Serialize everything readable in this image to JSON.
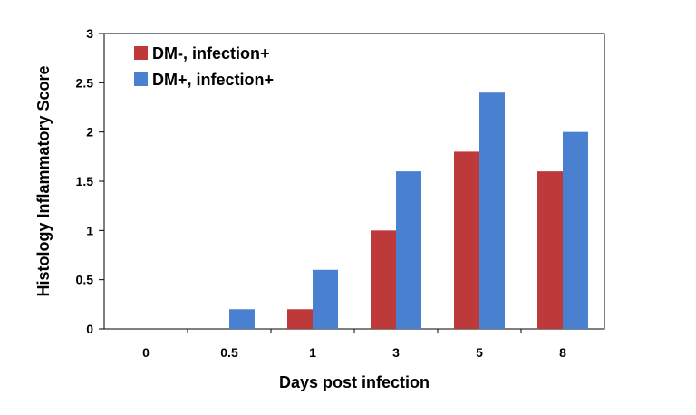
{
  "chart_data": {
    "type": "bar",
    "title": "",
    "xlabel": "Days post infection",
    "ylabel": "Histology Inflammatory Score",
    "categories": [
      "0",
      "0.5",
      "1",
      "3",
      "5",
      "8"
    ],
    "ylim": [
      0,
      3
    ],
    "yticks": [
      "0",
      "0.5",
      "1",
      "1.5",
      "2",
      "2.5",
      "3"
    ],
    "grid": false,
    "legend_position": "top-left",
    "series": [
      {
        "name": "DM-, infection+",
        "color": "#be3a3a",
        "values": [
          0,
          0,
          0.2,
          1.0,
          1.8,
          1.6
        ]
      },
      {
        "name": "DM+, infection+",
        "color": "#4a80d0",
        "values": [
          0,
          0.2,
          0.6,
          1.6,
          2.4,
          2.0
        ]
      }
    ]
  }
}
